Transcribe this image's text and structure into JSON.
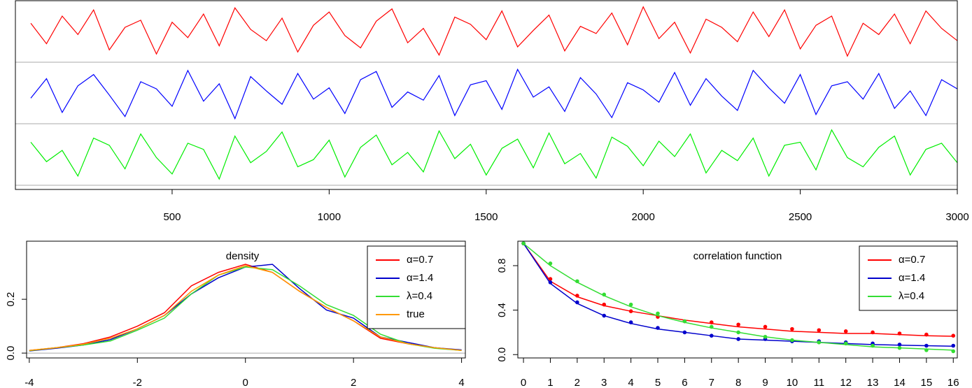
{
  "chart_data": [
    {
      "type": "line",
      "xlim": [
        1,
        3000
      ],
      "xticks": [
        500,
        1000,
        1500,
        2000,
        2500,
        3000
      ],
      "ylim": [
        -3,
        3
      ],
      "x": [
        50,
        100,
        150,
        200,
        250,
        300,
        350,
        400,
        450,
        500,
        550,
        600,
        650,
        700,
        750,
        800,
        850,
        900,
        950,
        1000,
        1050,
        1100,
        1150,
        1200,
        1250,
        1300,
        1350,
        1400,
        1450,
        1500,
        1550,
        1600,
        1650,
        1700,
        1750,
        1800,
        1850,
        1900,
        1950,
        2000,
        2050,
        2100,
        2150,
        2200,
        2250,
        2300,
        2350,
        2400,
        2450,
        2500,
        2550,
        2600,
        2650,
        2700,
        2750,
        2800,
        2850,
        2900,
        2950,
        3000
      ],
      "series": [
        {
          "color": "#ff0000",
          "values": [
            0.8,
            -1.2,
            1.5,
            -0.3,
            2.1,
            -1.8,
            0.4,
            1.1,
            -2.2,
            0.9,
            -0.6,
            1.7,
            -1.4,
            2.3,
            0.2,
            -0.9,
            1.3,
            -2.0,
            0.6,
            1.9,
            -0.4,
            -1.6,
            1.0,
            2.2,
            -1.1,
            0.3,
            -2.3,
            1.4,
            0.7,
            -0.8,
            2.0,
            -1.5,
            0.1,
            1.6,
            -1.9,
            0.5,
            -0.2,
            1.8,
            -1.3,
            2.4,
            -0.7,
            0.9,
            -2.1,
            1.2,
            0.4,
            -1.0,
            1.9,
            -0.5,
            2.1,
            -1.7,
            0.6,
            1.5,
            -2.4,
            0.8,
            -0.3,
            1.7,
            -1.2,
            2.0,
            0.3,
            -0.9
          ]
        },
        {
          "color": "#0000ff",
          "values": [
            -0.5,
            1.4,
            -1.9,
            0.7,
            1.8,
            -0.2,
            -2.3,
            1.1,
            0.4,
            -1.3,
            2.2,
            -0.8,
            0.9,
            -2.5,
            1.6,
            0.2,
            -1.1,
            1.9,
            -0.6,
            0.5,
            -2.0,
            1.3,
            2.1,
            -1.4,
            0.1,
            -0.7,
            1.7,
            -2.2,
            0.8,
            1.2,
            -1.6,
            2.3,
            -0.4,
            0.6,
            -1.8,
            1.5,
            -0.1,
            -2.4,
            1.0,
            0.3,
            -0.9,
            2.0,
            -1.2,
            1.4,
            -0.3,
            -1.7,
            2.2,
            0.5,
            -1.0,
            1.8,
            -2.1,
            0.7,
            1.1,
            -0.6,
            1.9,
            -1.5,
            0.2,
            -2.2,
            1.3,
            0.4
          ]
        },
        {
          "color": "#00ee00",
          "values": [
            1.2,
            -0.7,
            0.4,
            -2.1,
            1.6,
            0.9,
            -1.4,
            2.0,
            -0.3,
            -1.9,
            1.1,
            0.5,
            -2.4,
            1.8,
            -0.8,
            0.3,
            2.2,
            -1.2,
            -0.5,
            1.4,
            -2.2,
            0.7,
            1.9,
            -1.0,
            0.2,
            -1.7,
            2.3,
            -0.4,
            1.0,
            -2.0,
            0.6,
            1.5,
            -1.3,
            2.1,
            -0.9,
            0.1,
            -2.3,
            1.7,
            0.8,
            -1.1,
            1.3,
            -0.2,
            2.0,
            -1.8,
            0.4,
            -0.6,
            1.6,
            -2.1,
            0.9,
            1.2,
            -1.5,
            2.4,
            -0.3,
            -1.2,
            0.7,
            1.8,
            -2.0,
            0.5,
            1.1,
            -0.8
          ]
        }
      ]
    },
    {
      "type": "line",
      "title": "density",
      "xlim": [
        -4.05,
        4.07
      ],
      "xticks": [
        -4,
        -2,
        0,
        2,
        4
      ],
      "ylim": [
        -0.018,
        0.416
      ],
      "yticks": [
        {
          "value": 0,
          "label": "0.0"
        },
        0.2
      ],
      "legend": "top-right",
      "x": [
        -4,
        -3.5,
        -3,
        -2.5,
        -2,
        -1.5,
        -1,
        -0.5,
        0,
        0.5,
        1,
        1.5,
        2,
        2.5,
        3,
        3.5,
        4
      ],
      "series": [
        {
          "name": "α=0.7",
          "color": "#ff0000",
          "values": [
            0.01,
            0.02,
            0.035,
            0.06,
            0.1,
            0.15,
            0.25,
            0.3,
            0.33,
            0.3,
            0.23,
            0.17,
            0.12,
            0.055,
            0.035,
            0.02,
            0.01
          ]
        },
        {
          "name": "α=1.4",
          "color": "#0000cc",
          "values": [
            0.008,
            0.018,
            0.03,
            0.05,
            0.09,
            0.14,
            0.22,
            0.28,
            0.32,
            0.33,
            0.24,
            0.16,
            0.13,
            0.06,
            0.04,
            0.02,
            0.012
          ]
        },
        {
          "name": "λ=0.4",
          "color": "#33dd33",
          "values": [
            0.009,
            0.02,
            0.03,
            0.045,
            0.085,
            0.13,
            0.22,
            0.29,
            0.32,
            0.31,
            0.25,
            0.18,
            0.14,
            0.07,
            0.035,
            0.018,
            0.01
          ]
        },
        {
          "name": "true",
          "color": "#ff9900",
          "values": [
            0.01,
            0.02,
            0.033,
            0.055,
            0.09,
            0.14,
            0.23,
            0.29,
            0.325,
            0.3,
            0.23,
            0.17,
            0.12,
            0.06,
            0.035,
            0.02,
            0.01
          ]
        }
      ]
    },
    {
      "type": "line",
      "title": "correlation function",
      "xlim": [
        -0.21,
        16.15
      ],
      "xticks": [
        0,
        1,
        2,
        3,
        4,
        5,
        6,
        7,
        8,
        9,
        10,
        11,
        12,
        13,
        14,
        15,
        16
      ],
      "ylim": [
        -0.03,
        1.02
      ],
      "yticks": [
        {
          "value": 0,
          "label": "0.0"
        },
        0.4,
        0.8
      ],
      "legend": "top-right",
      "x": [
        0,
        1,
        2,
        3,
        4,
        5,
        6,
        7,
        8,
        9,
        10,
        11,
        12,
        13,
        14,
        15,
        16
      ],
      "series": [
        {
          "name": "α=0.7",
          "color": "#ff0000",
          "values": [
            1,
            0.66,
            0.52,
            0.44,
            0.39,
            0.35,
            0.31,
            0.28,
            0.25,
            0.23,
            0.21,
            0.2,
            0.19,
            0.19,
            0.18,
            0.17,
            0.165
          ],
          "points": [
            1,
            0.68,
            0.53,
            0.45,
            0.39,
            0.34,
            0.3,
            0.29,
            0.27,
            0.25,
            0.23,
            0.22,
            0.21,
            0.2,
            0.19,
            0.18,
            0.17
          ]
        },
        {
          "name": "α=1.4",
          "color": "#0000cc",
          "values": [
            1,
            0.64,
            0.46,
            0.35,
            0.28,
            0.23,
            0.2,
            0.17,
            0.14,
            0.13,
            0.12,
            0.11,
            0.1,
            0.09,
            0.085,
            0.08,
            0.075
          ],
          "points": [
            1,
            0.65,
            0.47,
            0.35,
            0.29,
            0.24,
            0.2,
            0.17,
            0.14,
            0.14,
            0.12,
            0.12,
            0.11,
            0.1,
            0.09,
            0.08,
            0.08
          ]
        },
        {
          "name": "λ=0.4",
          "color": "#33dd33",
          "values": [
            1,
            0.8,
            0.65,
            0.53,
            0.43,
            0.35,
            0.29,
            0.24,
            0.2,
            0.16,
            0.13,
            0.11,
            0.09,
            0.07,
            0.06,
            0.05,
            0.04
          ],
          "points": [
            1,
            0.82,
            0.66,
            0.54,
            0.45,
            0.37,
            0.3,
            0.25,
            0.2,
            0.16,
            0.13,
            0.11,
            0.1,
            0.08,
            0.06,
            0.04,
            0.03
          ]
        }
      ]
    }
  ]
}
